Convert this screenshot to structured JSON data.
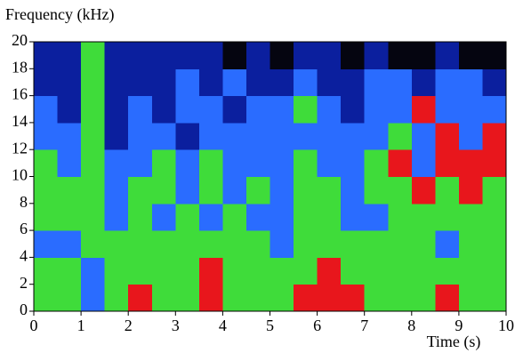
{
  "chart_data": {
    "type": "spectrogram",
    "y_label": "Frequency (kHz)",
    "x_label": "Time (s)",
    "xlim": [
      0,
      10
    ],
    "xticks": [
      0,
      1,
      2,
      3,
      4,
      5,
      6,
      7,
      8,
      9,
      10
    ],
    "ylim": [
      0,
      20
    ],
    "yticks": [
      0,
      2,
      4,
      6,
      8,
      10,
      12,
      14,
      16,
      18,
      20
    ],
    "colorscale": [
      "#050510",
      "#0b1f9e",
      "#2a6cff",
      "#3fdc3a",
      "#e8161c"
    ],
    "z": [
      [
        3,
        3,
        2,
        3,
        4,
        3,
        3,
        4,
        3,
        3,
        3,
        4,
        4,
        4,
        3,
        3,
        3,
        4,
        3,
        3
      ],
      [
        3,
        3,
        2,
        3,
        3,
        3,
        3,
        4,
        3,
        3,
        3,
        3,
        4,
        3,
        3,
        3,
        3,
        3,
        3,
        3
      ],
      [
        2,
        2,
        3,
        3,
        3,
        3,
        3,
        3,
        3,
        3,
        2,
        3,
        3,
        3,
        3,
        3,
        3,
        2,
        3,
        3
      ],
      [
        3,
        3,
        3,
        2,
        3,
        2,
        3,
        2,
        3,
        2,
        2,
        3,
        3,
        2,
        2,
        3,
        3,
        3,
        3,
        3
      ],
      [
        3,
        3,
        3,
        2,
        3,
        3,
        2,
        3,
        2,
        3,
        2,
        3,
        3,
        2,
        3,
        3,
        4,
        3,
        4,
        3
      ],
      [
        3,
        2,
        3,
        2,
        2,
        3,
        2,
        3,
        2,
        2,
        2,
        3,
        2,
        2,
        3,
        4,
        2,
        4,
        4,
        4
      ],
      [
        2,
        2,
        3,
        1,
        2,
        2,
        1,
        2,
        2,
        2,
        2,
        2,
        2,
        2,
        2,
        3,
        2,
        4,
        2,
        4
      ],
      [
        2,
        1,
        3,
        1,
        2,
        1,
        2,
        2,
        1,
        2,
        2,
        3,
        2,
        1,
        2,
        2,
        4,
        2,
        2,
        2
      ],
      [
        1,
        1,
        3,
        1,
        1,
        1,
        2,
        1,
        2,
        1,
        1,
        2,
        1,
        1,
        2,
        2,
        1,
        2,
        2,
        1
      ],
      [
        1,
        1,
        3,
        1,
        1,
        1,
        1,
        1,
        0,
        1,
        0,
        1,
        1,
        0,
        1,
        0,
        0,
        1,
        0,
        0
      ]
    ]
  }
}
